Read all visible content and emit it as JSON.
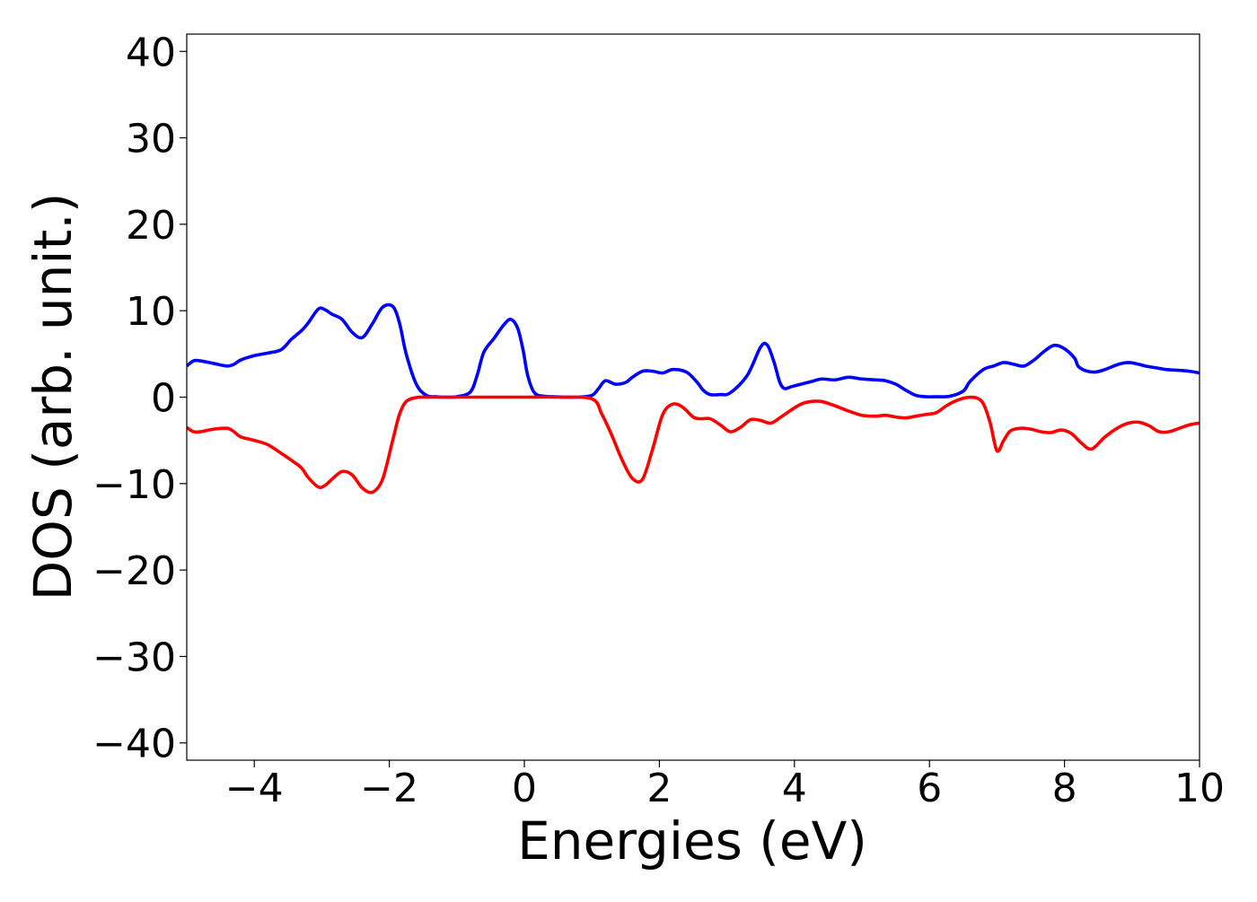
{
  "chart_data": {
    "type": "line",
    "title": "",
    "xlabel": "Energies (eV)",
    "ylabel": "DOS (arb. unit.)",
    "xlim": [
      -5,
      10
    ],
    "ylim": [
      -42,
      42
    ],
    "x_ticks": [
      -4,
      -2,
      0,
      2,
      4,
      6,
      8,
      10
    ],
    "x_tick_labels": [
      "−4",
      "−2",
      "0",
      "2",
      "4",
      "6",
      "8",
      "10"
    ],
    "y_ticks": [
      -40,
      -30,
      -20,
      -10,
      0,
      10,
      20,
      30,
      40
    ],
    "y_tick_labels": [
      "−40",
      "−30",
      "−20",
      "−10",
      "0",
      "10",
      "20",
      "30",
      "40"
    ],
    "grid": false,
    "legend": "none",
    "series": [
      {
        "color": "#0000ff",
        "x": [
          -5.0,
          -4.9,
          -4.8,
          -4.6,
          -4.4,
          -4.3,
          -4.2,
          -4.0,
          -3.8,
          -3.6,
          -3.45,
          -3.3,
          -3.2,
          -3.05,
          -2.95,
          -2.85,
          -2.7,
          -2.55,
          -2.4,
          -2.25,
          -2.1,
          -1.95,
          -1.85,
          -1.75,
          -1.6,
          -1.45,
          -1.3,
          -1.2,
          -1.0,
          -0.8,
          -0.7,
          -0.6,
          -0.45,
          -0.3,
          -0.2,
          -0.1,
          -0.02,
          0.05,
          0.15,
          0.3,
          0.45,
          0.6,
          0.8,
          1.0,
          1.1,
          1.2,
          1.35,
          1.5,
          1.6,
          1.75,
          1.9,
          2.05,
          2.2,
          2.4,
          2.55,
          2.65,
          2.75,
          2.9,
          3.05,
          3.3,
          3.5,
          3.6,
          3.7,
          3.78,
          3.85,
          3.95,
          4.1,
          4.25,
          4.4,
          4.6,
          4.8,
          5.0,
          5.2,
          5.35,
          5.5,
          5.65,
          5.8,
          5.95,
          6.1,
          6.3,
          6.5,
          6.6,
          6.8,
          6.95,
          7.1,
          7.25,
          7.4,
          7.55,
          7.7,
          7.85,
          8.0,
          8.15,
          8.2,
          8.3,
          8.45,
          8.6,
          8.8,
          8.95,
          9.1,
          9.2,
          9.35,
          9.5,
          9.7,
          9.85,
          10.0
        ],
        "values": [
          3.6,
          4.2,
          4.2,
          3.9,
          3.6,
          3.8,
          4.3,
          4.8,
          5.1,
          5.5,
          6.7,
          7.7,
          8.6,
          10.2,
          10.1,
          9.6,
          9.0,
          7.5,
          6.9,
          8.5,
          10.4,
          10.5,
          8.6,
          5.0,
          1.5,
          0.2,
          0.05,
          0.0,
          0.05,
          0.6,
          2.5,
          5.2,
          6.8,
          8.4,
          9.0,
          8.0,
          5.5,
          2.5,
          0.5,
          0.1,
          0.05,
          0.0,
          0.0,
          0.2,
          1.0,
          1.9,
          1.5,
          1.7,
          2.3,
          3.0,
          3.0,
          2.8,
          3.2,
          2.9,
          1.8,
          0.8,
          0.3,
          0.3,
          0.5,
          2.5,
          5.8,
          6.0,
          4.0,
          1.8,
          1.0,
          1.2,
          1.5,
          1.8,
          2.1,
          2.0,
          2.3,
          2.1,
          2.0,
          1.9,
          1.5,
          0.8,
          0.2,
          0.05,
          0.05,
          0.1,
          0.7,
          1.8,
          3.2,
          3.6,
          4.0,
          3.8,
          3.6,
          4.3,
          5.3,
          6.0,
          5.6,
          4.5,
          3.6,
          3.1,
          2.9,
          3.2,
          3.8,
          4.0,
          3.8,
          3.6,
          3.4,
          3.2,
          3.1,
          3.0,
          2.8
        ]
      },
      {
        "color": "#ff0000",
        "x": [
          -5.0,
          -4.9,
          -4.8,
          -4.6,
          -4.4,
          -4.3,
          -4.2,
          -4.0,
          -3.8,
          -3.6,
          -3.45,
          -3.3,
          -3.2,
          -3.05,
          -2.95,
          -2.85,
          -2.7,
          -2.55,
          -2.4,
          -2.25,
          -2.1,
          -1.95,
          -1.85,
          -1.75,
          -1.6,
          -1.45,
          -1.3,
          -1.2,
          -1.0,
          -0.5,
          0.0,
          0.5,
          1.0,
          1.15,
          1.3,
          1.45,
          1.6,
          1.75,
          1.9,
          2.05,
          2.2,
          2.35,
          2.5,
          2.6,
          2.75,
          2.9,
          3.05,
          3.2,
          3.35,
          3.5,
          3.65,
          3.8,
          3.95,
          4.1,
          4.25,
          4.4,
          4.6,
          4.8,
          5.0,
          5.2,
          5.35,
          5.5,
          5.65,
          5.8,
          5.95,
          6.1,
          6.25,
          6.4,
          6.55,
          6.7,
          6.8,
          6.9,
          7.0,
          7.1,
          7.2,
          7.35,
          7.5,
          7.65,
          7.8,
          7.95,
          8.1,
          8.25,
          8.4,
          8.6,
          8.8,
          8.95,
          9.1,
          9.25,
          9.4,
          9.55,
          9.7,
          9.85,
          10.0
        ],
        "values": [
          -3.5,
          -4.0,
          -4.0,
          -3.7,
          -3.6,
          -4.0,
          -4.6,
          -5.0,
          -5.5,
          -6.5,
          -7.3,
          -8.2,
          -9.3,
          -10.4,
          -10.2,
          -9.5,
          -8.6,
          -9.0,
          -10.5,
          -11.0,
          -9.5,
          -5.0,
          -2.0,
          -0.5,
          -0.05,
          0.0,
          0.0,
          0.0,
          0.0,
          0.0,
          0.0,
          0.0,
          -0.2,
          -2.0,
          -4.5,
          -7.3,
          -9.4,
          -9.5,
          -6.0,
          -2.0,
          -0.8,
          -1.2,
          -2.3,
          -2.5,
          -2.5,
          -3.2,
          -4.0,
          -3.5,
          -2.6,
          -2.7,
          -3.0,
          -2.3,
          -1.5,
          -0.8,
          -0.5,
          -0.5,
          -1.0,
          -1.6,
          -2.1,
          -2.2,
          -2.1,
          -2.3,
          -2.4,
          -2.2,
          -2.0,
          -1.8,
          -1.0,
          -0.4,
          -0.05,
          -0.1,
          -0.8,
          -3.0,
          -6.2,
          -5.0,
          -3.9,
          -3.6,
          -3.7,
          -4.0,
          -4.1,
          -3.8,
          -4.2,
          -5.3,
          -6.0,
          -4.6,
          -3.5,
          -3.0,
          -2.9,
          -3.3,
          -4.0,
          -4.0,
          -3.6,
          -3.2,
          -3.0
        ]
      }
    ]
  }
}
